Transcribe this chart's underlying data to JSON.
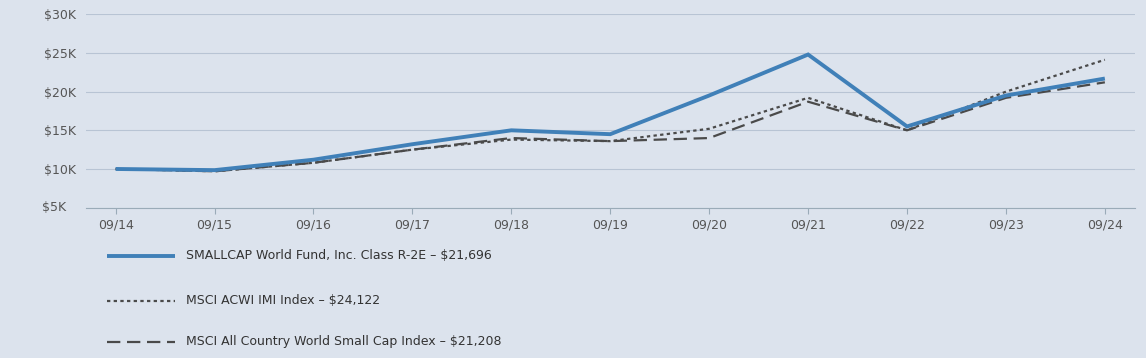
{
  "x_labels": [
    "09/14",
    "09/15",
    "09/16",
    "09/17",
    "09/18",
    "09/19",
    "09/20",
    "09/21",
    "09/22",
    "09/23",
    "09/24"
  ],
  "x_positions": [
    0,
    1,
    2,
    3,
    4,
    5,
    6,
    7,
    8,
    9,
    10
  ],
  "fund_values": [
    10000,
    9850,
    11200,
    13200,
    15000,
    14500,
    19500,
    24800,
    15500,
    19500,
    21696
  ],
  "msci_acwi_values": [
    10000,
    9700,
    10800,
    12500,
    13800,
    13600,
    15200,
    19200,
    15000,
    20000,
    24122
  ],
  "msci_smallcap_values": [
    10000,
    9700,
    10800,
    12500,
    14000,
    13600,
    14000,
    18700,
    15000,
    19200,
    21208
  ],
  "fund_color": "#4080b8",
  "msci_acwi_color": "#4a4a4a",
  "msci_smallcap_color": "#4a4a4a",
  "background_color": "#dce3ed",
  "grid_color": "#b8c4d4",
  "ylim": [
    5000,
    30000
  ],
  "ytick_values": [
    5000,
    10000,
    15000,
    20000,
    25000,
    30000
  ],
  "ytick_labels": [
    "$5K",
    "$10K",
    "$15K",
    "$20K",
    "$25K",
    "$30K"
  ],
  "legend_labels": [
    "SMALLCAP World Fund, Inc. Class R-2E – $21,696",
    "MSCI ACWI IMI Index – $24,122",
    "MSCI All Country World Small Cap Index – $21,208"
  ],
  "fund_linewidth": 2.8,
  "index_linewidth": 1.6,
  "tick_label_fontsize": 9,
  "legend_fontsize": 9
}
